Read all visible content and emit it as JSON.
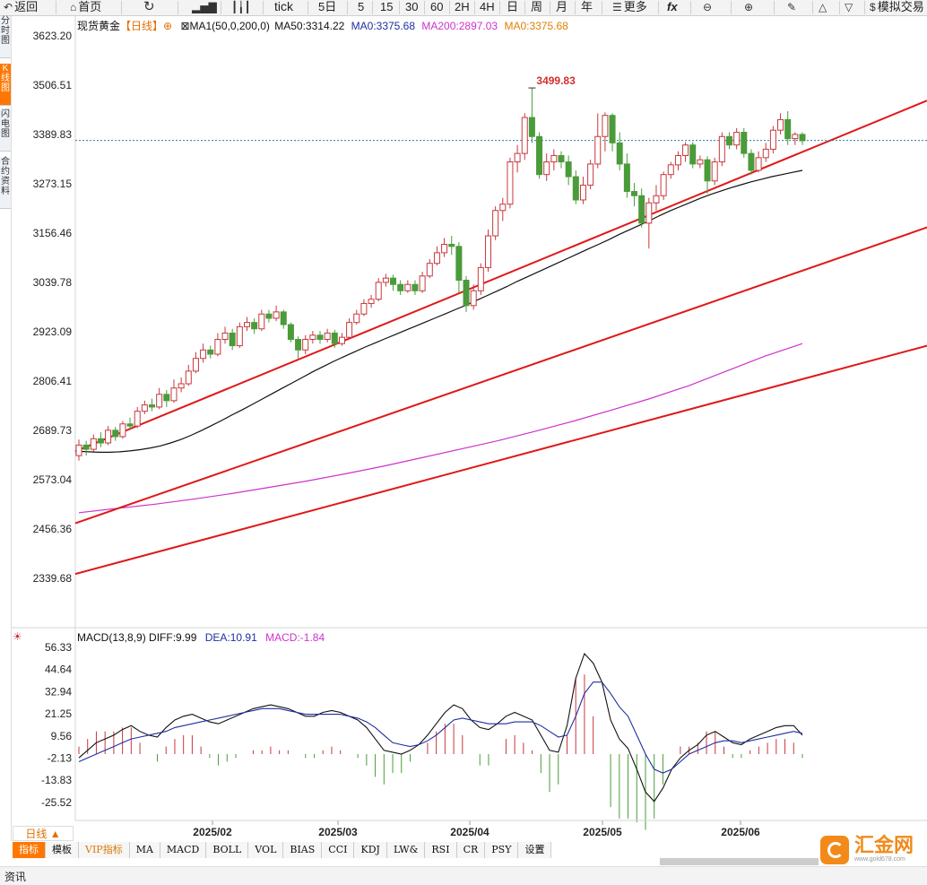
{
  "toolbar": {
    "back": "返回",
    "home": "首页",
    "tick": "tick",
    "periods": [
      "5日",
      "5",
      "15",
      "30",
      "60",
      "2H",
      "4H",
      "日",
      "周",
      "月",
      "年"
    ],
    "more": "更多",
    "fx": "fx",
    "sim": "模拟交易"
  },
  "side_tabs": [
    {
      "label": "分时图",
      "active": false
    },
    {
      "label": "K线图",
      "active": true
    },
    {
      "label": "闪电图",
      "active": false
    },
    {
      "label": "合约资料",
      "active": false
    }
  ],
  "main_header": {
    "symbol": "现货黄金",
    "period": "【日线】",
    "ma_set": "MA1(50,0,200,0)",
    "ma50": "MA50:3314.22",
    "ma0": "MA0:3375.68",
    "ma200": "MA200:2897.03",
    "ma0_b": "MA0:3375.68"
  },
  "macd_header": {
    "name": "MACD(13,8,9)",
    "diff": "DIFF:9.99",
    "dea": "DEA:10.91",
    "macd": "MACD:-1.84"
  },
  "colors": {
    "up": "#c8383d",
    "down": "#4a9b3a",
    "ma50": "#111111",
    "ma200": "#cc33cc",
    "channel": "#e01818",
    "diff": "#111111",
    "dea": "#1f2f9f",
    "last_line": "#2a7ab0"
  },
  "chart_data": [
    {
      "type": "candlestick",
      "title": "现货黄金【日线】",
      "y_ticks": [
        "3623.20",
        "3506.51",
        "3389.83",
        "3273.15",
        "3156.46",
        "3039.78",
        "2923.09",
        "2806.41",
        "2689.73",
        "2573.04",
        "2456.36",
        "2339.68"
      ],
      "x_ticks": [
        "2025/02",
        "2025/03",
        "2025/04",
        "2025/05",
        "2025/06"
      ],
      "ylim": [
        2280,
        3650
      ],
      "high_label": "3499.83",
      "last_price": 3375.68,
      "channel_lines": [
        [
          2640,
          3470
        ],
        [
          2470,
          3170
        ],
        [
          2350,
          2890
        ]
      ],
      "candles": [
        [
          2630,
          2655,
          2618,
          2668
        ],
        [
          2655,
          2645,
          2630,
          2665
        ],
        [
          2645,
          2670,
          2640,
          2680
        ],
        [
          2670,
          2660,
          2650,
          2685
        ],
        [
          2660,
          2690,
          2655,
          2700
        ],
        [
          2690,
          2675,
          2665,
          2698
        ],
        [
          2675,
          2705,
          2670,
          2712
        ],
        [
          2705,
          2700,
          2690,
          2720
        ],
        [
          2700,
          2735,
          2695,
          2745
        ],
        [
          2735,
          2750,
          2728,
          2760
        ],
        [
          2750,
          2745,
          2735,
          2765
        ],
        [
          2745,
          2775,
          2740,
          2790
        ],
        [
          2775,
          2760,
          2745,
          2785
        ],
        [
          2760,
          2790,
          2755,
          2810
        ],
        [
          2790,
          2800,
          2780,
          2815
        ],
        [
          2800,
          2830,
          2795,
          2845
        ],
        [
          2830,
          2860,
          2825,
          2875
        ],
        [
          2860,
          2880,
          2850,
          2895
        ],
        [
          2880,
          2870,
          2860,
          2890
        ],
        [
          2870,
          2905,
          2865,
          2920
        ],
        [
          2905,
          2920,
          2895,
          2935
        ],
        [
          2920,
          2890,
          2880,
          2930
        ],
        [
          2890,
          2935,
          2885,
          2945
        ],
        [
          2935,
          2945,
          2925,
          2958
        ],
        [
          2945,
          2930,
          2918,
          2955
        ],
        [
          2930,
          2965,
          2925,
          2975
        ],
        [
          2965,
          2955,
          2945,
          2975
        ],
        [
          2955,
          2970,
          2948,
          2985
        ],
        [
          2970,
          2940,
          2930,
          2975
        ],
        [
          2940,
          2905,
          2898,
          2945
        ],
        [
          2905,
          2880,
          2860,
          2912
        ],
        [
          2880,
          2905,
          2870,
          2915
        ],
        [
          2905,
          2915,
          2895,
          2925
        ],
        [
          2915,
          2905,
          2895,
          2925
        ],
        [
          2905,
          2920,
          2898,
          2930
        ],
        [
          2920,
          2895,
          2885,
          2928
        ],
        [
          2895,
          2910,
          2890,
          2920
        ],
        [
          2910,
          2945,
          2905,
          2955
        ],
        [
          2945,
          2965,
          2940,
          2975
        ],
        [
          2965,
          2990,
          2960,
          3000
        ],
        [
          2990,
          3000,
          2980,
          3010
        ],
        [
          3000,
          3040,
          2995,
          3050
        ],
        [
          3040,
          3050,
          3030,
          3060
        ],
        [
          3050,
          3035,
          3020,
          3058
        ],
        [
          3035,
          3020,
          3010,
          3045
        ],
        [
          3020,
          3035,
          3015,
          3045
        ],
        [
          3035,
          3020,
          3010,
          3045
        ],
        [
          3020,
          3055,
          3015,
          3065
        ],
        [
          3055,
          3085,
          3050,
          3095
        ],
        [
          3085,
          3110,
          3080,
          3125
        ],
        [
          3110,
          3130,
          3100,
          3145
        ],
        [
          3130,
          3125,
          3105,
          3150
        ],
        [
          3125,
          3045,
          3015,
          3135
        ],
        [
          3045,
          2985,
          2970,
          3055
        ],
        [
          2985,
          3020,
          2975,
          3035
        ],
        [
          3020,
          3075,
          3010,
          3085
        ],
        [
          3075,
          3150,
          3065,
          3165
        ],
        [
          3150,
          3210,
          3140,
          3220
        ],
        [
          3210,
          3225,
          3185,
          3240
        ],
        [
          3225,
          3325,
          3215,
          3335
        ],
        [
          3325,
          3345,
          3300,
          3365
        ],
        [
          3345,
          3430,
          3330,
          3440
        ],
        [
          3430,
          3385,
          3370,
          3500
        ],
        [
          3385,
          3295,
          3285,
          3395
        ],
        [
          3295,
          3325,
          3280,
          3345
        ],
        [
          3325,
          3340,
          3305,
          3355
        ],
        [
          3340,
          3325,
          3310,
          3350
        ],
        [
          3325,
          3290,
          3270,
          3340
        ],
        [
          3290,
          3235,
          3225,
          3305
        ],
        [
          3235,
          3270,
          3225,
          3290
        ],
        [
          3270,
          3320,
          3260,
          3330
        ],
        [
          3320,
          3385,
          3310,
          3440
        ],
        [
          3385,
          3435,
          3350,
          3442
        ],
        [
          3435,
          3370,
          3350,
          3440
        ],
        [
          3370,
          3320,
          3305,
          3395
        ],
        [
          3320,
          3255,
          3240,
          3345
        ],
        [
          3255,
          3245,
          3220,
          3275
        ],
        [
          3245,
          3180,
          3170,
          3262
        ],
        [
          3180,
          3228,
          3120,
          3240
        ],
        [
          3228,
          3245,
          3210,
          3270
        ],
        [
          3245,
          3295,
          3235,
          3302
        ],
        [
          3295,
          3318,
          3285,
          3325
        ],
        [
          3318,
          3340,
          3305,
          3350
        ],
        [
          3340,
          3365,
          3325,
          3372
        ],
        [
          3365,
          3320,
          3310,
          3372
        ],
        [
          3320,
          3330,
          3310,
          3340
        ],
        [
          3330,
          3280,
          3250,
          3338
        ],
        [
          3280,
          3325,
          3270,
          3335
        ],
        [
          3325,
          3385,
          3315,
          3395
        ],
        [
          3385,
          3365,
          3355,
          3395
        ],
        [
          3365,
          3395,
          3355,
          3405
        ],
        [
          3395,
          3345,
          3335,
          3405
        ],
        [
          3345,
          3305,
          3295,
          3355
        ],
        [
          3305,
          3335,
          3300,
          3350
        ],
        [
          3335,
          3355,
          3325,
          3370
        ],
        [
          3355,
          3400,
          3345,
          3410
        ],
        [
          3400,
          3425,
          3390,
          3440
        ],
        [
          3425,
          3380,
          3365,
          3445
        ],
        [
          3380,
          3390,
          3365,
          3395
        ],
        [
          3390,
          3375,
          3365,
          3395
        ]
      ],
      "ma50": [
        2640,
        2639,
        2638,
        2638,
        2639,
        2641,
        2644,
        2648,
        2653,
        2660,
        2668,
        2678,
        2689,
        2701,
        2713,
        2726,
        2738,
        2751,
        2764,
        2777,
        2790,
        2803,
        2816,
        2829,
        2841,
        2853,
        2864,
        2875,
        2886,
        2896,
        2906,
        2916,
        2926,
        2936,
        2946,
        2956,
        2966,
        2976,
        2986,
        2997,
        3008,
        3019,
        3030,
        3042,
        3053,
        3064,
        3075,
        3086,
        3097,
        3108,
        3119,
        3130,
        3141,
        3153,
        3164,
        3175,
        3186,
        3198,
        3209,
        3219,
        3229,
        3239,
        3248,
        3256,
        3264,
        3271,
        3278,
        3284,
        3290,
        3295,
        3300,
        3305
      ],
      "ma200": [
        2495,
        2505,
        2515,
        2527,
        2540,
        2555,
        2570,
        2587,
        2605,
        2625,
        2645,
        2665,
        2688,
        2712,
        2738,
        2765,
        2795,
        2830,
        2865,
        2895
      ]
    },
    {
      "type": "macd",
      "title": "MACD(13,8,9)",
      "y_ticks": [
        "56.33",
        "44.64",
        "32.94",
        "21.25",
        "9.56",
        "-2.13",
        "-13.83",
        "-25.52"
      ],
      "ylim": [
        -38,
        61
      ],
      "diff": [
        -2,
        2,
        6,
        8,
        10,
        13,
        15,
        12,
        10,
        9,
        14,
        18,
        20,
        21,
        19,
        17,
        16,
        18,
        20,
        22,
        24,
        25,
        26,
        25,
        24,
        22,
        20,
        20,
        22,
        23,
        22,
        20,
        18,
        14,
        8,
        2,
        1,
        0,
        2,
        5,
        10,
        16,
        22,
        26,
        24,
        18,
        14,
        13,
        16,
        20,
        22,
        20,
        18,
        10,
        2,
        1,
        15,
        40,
        53,
        48,
        38,
        18,
        8,
        3,
        -8,
        -20,
        -25,
        -18,
        -8,
        -2,
        2,
        5,
        10,
        12,
        9,
        6,
        5,
        8,
        10,
        12,
        14,
        15,
        15,
        10
      ],
      "dea": [
        -4,
        -2,
        0,
        2,
        4,
        6,
        8,
        9,
        10,
        11,
        12,
        14,
        15,
        16,
        17,
        18,
        19,
        20,
        21,
        22,
        23,
        24,
        24,
        24,
        23,
        22,
        21,
        21,
        21,
        21,
        21,
        20,
        19,
        17,
        14,
        10,
        6,
        5,
        4,
        5,
        7,
        10,
        14,
        18,
        19,
        18,
        17,
        16,
        16,
        16,
        17,
        17,
        17,
        15,
        12,
        9,
        10,
        20,
        32,
        38,
        38,
        32,
        25,
        20,
        10,
        0,
        -8,
        -10,
        -8,
        -4,
        0,
        2,
        4,
        6,
        7,
        7,
        6,
        7,
        8,
        9,
        10,
        11,
        12,
        11
      ]
    }
  ],
  "macd_hist_extra": "",
  "indicator_tabs": [
    {
      "label": "指标",
      "active": true,
      "vip": false
    },
    {
      "label": "模板",
      "active": false,
      "vip": false
    },
    {
      "label": "VIP指标",
      "active": false,
      "vip": true
    },
    {
      "label": "MA",
      "active": false,
      "vip": false
    },
    {
      "label": "MACD",
      "active": false,
      "vip": false
    },
    {
      "label": "BOLL",
      "active": false,
      "vip": false
    },
    {
      "label": "VOL",
      "active": false,
      "vip": false
    },
    {
      "label": "BIAS",
      "active": false,
      "vip": false
    },
    {
      "label": "CCI",
      "active": false,
      "vip": false
    },
    {
      "label": "KDJ",
      "active": false,
      "vip": false
    },
    {
      "label": "LW&",
      "active": false,
      "vip": false
    },
    {
      "label": "RSI",
      "active": false,
      "vip": false
    },
    {
      "label": "CR",
      "active": false,
      "vip": false
    },
    {
      "label": "PSY",
      "active": false,
      "vip": false
    },
    {
      "label": "设置",
      "active": false,
      "vip": false
    }
  ],
  "period_button": "日线 ▲",
  "logo_text": "汇金网",
  "logo_sub": "www.gold678.com",
  "bottom_tab": "资讯"
}
